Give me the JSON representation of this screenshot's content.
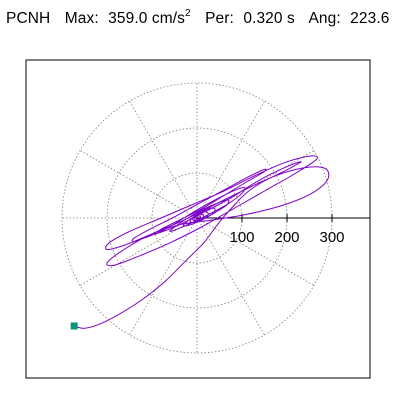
{
  "header": {
    "station": "PCNH",
    "max_label": "Max:",
    "max_value": "359.0 cm/s",
    "max_exp": "2",
    "per_label": "Per:",
    "per_value": "0.320 s",
    "ang_label": "Ang:",
    "ang_value": "223.6"
  },
  "chart_data": {
    "type": "polar-hodogram",
    "title": "PCNH Max: 359.0 cm/s2 Per: 0.320 s Ang: 223.6",
    "radial_ticks": [
      100,
      200,
      300
    ],
    "radial_tick_labels": [
      "100",
      "200",
      "300"
    ],
    "rings": [
      100,
      200,
      300
    ],
    "spokes_deg": [
      0,
      30,
      60,
      90,
      120,
      150,
      180,
      210,
      240,
      270,
      300,
      330
    ],
    "rmax": 300,
    "grid": true,
    "series": [
      {
        "color": "#8000cc",
        "points": [
          [
            -273,
            -240
          ],
          [
            -250,
            -245
          ],
          [
            -215,
            -235
          ],
          [
            -170,
            -212
          ],
          [
            -120,
            -180
          ],
          [
            -70,
            -140
          ],
          [
            -25,
            -95
          ],
          [
            15,
            -55
          ],
          [
            45,
            -15
          ],
          [
            75,
            20
          ],
          [
            115,
            60
          ],
          [
            170,
            92
          ],
          [
            240,
            112
          ],
          [
            285,
            110
          ],
          [
            290,
            85
          ],
          [
            255,
            55
          ],
          [
            190,
            28
          ],
          [
            110,
            8
          ],
          [
            30,
            -5
          ],
          [
            -40,
            -15
          ],
          [
            -110,
            -40
          ],
          [
            -170,
            -75
          ],
          [
            -200,
            -100
          ],
          [
            -185,
            -105
          ],
          [
            -130,
            -85
          ],
          [
            -60,
            -55
          ],
          [
            10,
            -20
          ],
          [
            80,
            20
          ],
          [
            150,
            60
          ],
          [
            220,
            100
          ],
          [
            265,
            130
          ],
          [
            255,
            138
          ],
          [
            200,
            125
          ],
          [
            130,
            95
          ],
          [
            60,
            60
          ],
          [
            -10,
            30
          ],
          [
            -80,
            0
          ],
          [
            -150,
            -30
          ],
          [
            -195,
            -55
          ],
          [
            -200,
            -70
          ],
          [
            -160,
            -60
          ],
          [
            -100,
            -35
          ],
          [
            -30,
            -5
          ],
          [
            40,
            30
          ],
          [
            110,
            65
          ],
          [
            175,
            95
          ],
          [
            220,
            118
          ],
          [
            230,
            125
          ],
          [
            195,
            112
          ],
          [
            140,
            85
          ],
          [
            75,
            45
          ],
          [
            10,
            10
          ],
          [
            -50,
            -20
          ],
          [
            -105,
            -40
          ],
          [
            -140,
            -52
          ],
          [
            -140,
            -45
          ],
          [
            -105,
            -25
          ],
          [
            -55,
            0
          ],
          [
            0,
            30
          ],
          [
            60,
            62
          ],
          [
            115,
            92
          ],
          [
            150,
            108
          ],
          [
            148,
            102
          ],
          [
            110,
            80
          ],
          [
            60,
            50
          ],
          [
            10,
            20
          ],
          [
            -40,
            -5
          ],
          [
            -80,
            -25
          ],
          [
            -95,
            -35
          ],
          [
            -80,
            -30
          ],
          [
            -45,
            -10
          ],
          [
            -5,
            15
          ],
          [
            40,
            40
          ],
          [
            80,
            60
          ],
          [
            105,
            68
          ],
          [
            100,
            55
          ],
          [
            70,
            32
          ],
          [
            30,
            10
          ],
          [
            -10,
            -10
          ],
          [
            -45,
            -25
          ],
          [
            -60,
            -30
          ],
          [
            -50,
            -20
          ],
          [
            -20,
            0
          ],
          [
            15,
            20
          ],
          [
            50,
            35
          ],
          [
            70,
            40
          ],
          [
            65,
            28
          ],
          [
            40,
            12
          ],
          [
            10,
            -5
          ],
          [
            -15,
            -15
          ],
          [
            -30,
            -18
          ],
          [
            -25,
            -10
          ],
          [
            -8,
            2
          ],
          [
            12,
            14
          ],
          [
            30,
            22
          ],
          [
            40,
            20
          ],
          [
            35,
            10
          ],
          [
            18,
            0
          ],
          [
            0,
            -8
          ],
          [
            -12,
            -10
          ],
          [
            -15,
            -6
          ],
          [
            -8,
            2
          ],
          [
            5,
            10
          ],
          [
            18,
            14
          ],
          [
            25,
            10
          ],
          [
            20,
            2
          ],
          [
            8,
            -4
          ],
          [
            -4,
            -6
          ],
          [
            -10,
            -2
          ],
          [
            -5,
            5
          ],
          [
            6,
            8
          ],
          [
            14,
            6
          ],
          [
            12,
            -2
          ],
          [
            2,
            -6
          ],
          [
            -6,
            -2
          ],
          [
            -2,
            4
          ],
          [
            6,
            4
          ],
          [
            8,
            0
          ],
          [
            2,
            -3
          ],
          [
            -3,
            0
          ],
          [
            0,
            2
          ]
        ]
      }
    ],
    "start_marker": {
      "x": -273,
      "y": -240,
      "color": "#009977"
    }
  }
}
